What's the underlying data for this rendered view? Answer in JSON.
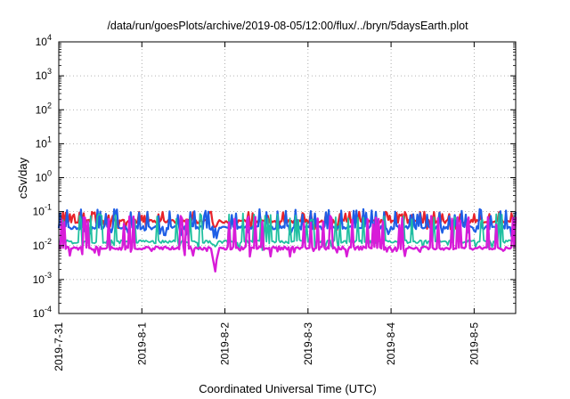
{
  "chart_data": {
    "type": "line",
    "title": "/data/run/goesPlots/archive/2019-08-05/12:00/flux/../bryn/5daysEarth.plot",
    "xlabel": "Coordinated Universal Time (UTC)",
    "ylabel": "cSv/day",
    "y_scale": "log",
    "ylim": [
      0.0001,
      10000
    ],
    "y_ticks": [
      {
        "value": 0.0001,
        "base": "10",
        "exp": "-4"
      },
      {
        "value": 0.001,
        "base": "10",
        "exp": "-3"
      },
      {
        "value": 0.01,
        "base": "10",
        "exp": "-2"
      },
      {
        "value": 0.1,
        "base": "10",
        "exp": "-1"
      },
      {
        "value": 1,
        "base": "10",
        "exp": "0"
      },
      {
        "value": 10,
        "base": "10",
        "exp": "1"
      },
      {
        "value": 100,
        "base": "10",
        "exp": "2"
      },
      {
        "value": 1000,
        "base": "10",
        "exp": "3"
      },
      {
        "value": 10000,
        "base": "10",
        "exp": "4"
      }
    ],
    "xlim_days": [
      0,
      5.5
    ],
    "x_ticks": [
      {
        "day": 0,
        "label": "2019-7-31"
      },
      {
        "day": 1,
        "label": "2019-8-1"
      },
      {
        "day": 2,
        "label": "2019-8-2"
      },
      {
        "day": 3,
        "label": "2019-8-3"
      },
      {
        "day": 4,
        "label": "2019-8-4"
      },
      {
        "day": 5,
        "label": "2019-8-5"
      }
    ],
    "grid": true,
    "series": [
      {
        "color": "#e8222a",
        "base": 0.052,
        "spike_max": 0.1,
        "dip_min": 0.03,
        "width": 2.2
      },
      {
        "color": "#1e5ee6",
        "base": 0.034,
        "spike_max": 0.12,
        "dip_min": 0.005,
        "width": 2.2
      },
      {
        "color": "#20c0a0",
        "base": 0.013,
        "spike_max": 0.09,
        "dip_min": 0.009,
        "width": 1.8
      },
      {
        "color": "#d81cd8",
        "base": 0.0085,
        "spike_max": 0.075,
        "dip_min": 0.0009,
        "width": 2.4
      }
    ]
  }
}
